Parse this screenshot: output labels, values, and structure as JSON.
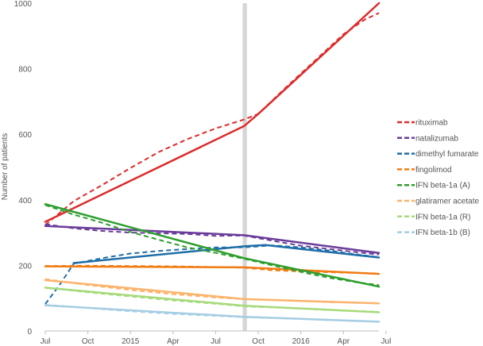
{
  "chart_data": {
    "type": "line",
    "title": "",
    "xlabel": "",
    "ylabel": "Number of patients",
    "x_ticks": [
      "Jul",
      "Oct",
      "2015",
      "Apr",
      "Jul",
      "Oct",
      "2016",
      "Apr",
      "Jul"
    ],
    "x_range": [
      0,
      23.5
    ],
    "ylim": [
      0,
      1000
    ],
    "y_ticks": [
      0,
      200,
      400,
      600,
      800,
      1000
    ],
    "grid": false,
    "legend_position": "right",
    "interruption_band_x": [
      13.9,
      14.2
    ],
    "note": "",
    "series": [
      {
        "name": "rituximab",
        "color": "#dd2c2c",
        "fitted": [
          [
            0,
            333
          ],
          [
            14.0,
            625
          ],
          [
            15.0,
            662
          ],
          [
            23.5,
            1000
          ]
        ],
        "observed": [
          [
            0,
            323
          ],
          [
            2,
            396
          ],
          [
            4,
            445
          ],
          [
            6,
            497
          ],
          [
            8,
            546
          ],
          [
            10,
            585
          ],
          [
            12,
            618
          ],
          [
            14,
            645
          ],
          [
            15,
            662
          ],
          [
            17,
            745
          ],
          [
            19,
            825
          ],
          [
            21,
            905
          ],
          [
            22.5,
            950
          ],
          [
            23.5,
            970
          ]
        ]
      },
      {
        "name": "natalizumab",
        "color": "#6a3d9a",
        "fitted": [
          [
            0,
            320
          ],
          [
            14.0,
            292
          ],
          [
            23.5,
            238
          ]
        ],
        "observed": [
          [
            0,
            326
          ],
          [
            2,
            313
          ],
          [
            4,
            305
          ],
          [
            6,
            300
          ],
          [
            8,
            298
          ],
          [
            10,
            296
          ],
          [
            12,
            290
          ],
          [
            14,
            291
          ],
          [
            16,
            275
          ],
          [
            18,
            260
          ],
          [
            20,
            250
          ],
          [
            22,
            240
          ],
          [
            23.5,
            233
          ]
        ]
      },
      {
        "name": "dimethyl fumarate",
        "color": "#1f6fa8",
        "fitted": [
          [
            2,
            207
          ],
          [
            14.0,
            258
          ],
          [
            15.5,
            262
          ],
          [
            23.5,
            224
          ]
        ],
        "observed": [
          [
            0,
            82
          ],
          [
            1,
            140
          ],
          [
            2,
            205
          ],
          [
            4,
            222
          ],
          [
            6,
            236
          ],
          [
            8,
            244
          ],
          [
            10,
            250
          ],
          [
            12,
            255
          ],
          [
            14,
            255
          ],
          [
            16,
            261
          ],
          [
            18,
            255
          ],
          [
            20,
            245
          ],
          [
            22,
            233
          ],
          [
            23.5,
            225
          ]
        ]
      },
      {
        "name": "fingolimod",
        "color": "#f07c13",
        "fitted": [
          [
            0,
            197
          ],
          [
            14.0,
            194
          ],
          [
            23.5,
            174
          ]
        ],
        "observed": [
          [
            0,
            198
          ],
          [
            3,
            199
          ],
          [
            6,
            198
          ],
          [
            9,
            197
          ],
          [
            12,
            195
          ],
          [
            14,
            193
          ],
          [
            16,
            185
          ],
          [
            19,
            180
          ],
          [
            21,
            178
          ],
          [
            23.5,
            175
          ]
        ]
      },
      {
        "name": "IFN beta-1a (A)",
        "color": "#2e9e2e",
        "fitted": [
          [
            0,
            387
          ],
          [
            14.0,
            222
          ],
          [
            23.5,
            135
          ]
        ],
        "observed": [
          [
            0,
            384
          ],
          [
            2,
            355
          ],
          [
            4,
            330
          ],
          [
            6,
            302
          ],
          [
            8,
            278
          ],
          [
            10,
            255
          ],
          [
            12,
            238
          ],
          [
            14,
            220
          ],
          [
            16,
            200
          ],
          [
            18,
            180
          ],
          [
            20,
            162
          ],
          [
            22,
            148
          ],
          [
            23.5,
            140
          ]
        ]
      },
      {
        "name": "glatiramer acetate",
        "color": "#fcb36b",
        "fitted": [
          [
            0,
            155
          ],
          [
            14.0,
            97
          ],
          [
            23.5,
            84
          ]
        ],
        "observed": [
          [
            0,
            158
          ],
          [
            3,
            140
          ],
          [
            6,
            125
          ],
          [
            9,
            112
          ],
          [
            12,
            102
          ],
          [
            14,
            97
          ],
          [
            17,
            93
          ],
          [
            20,
            88
          ],
          [
            23.5,
            84
          ]
        ]
      },
      {
        "name": "IFN beta-1a (R)",
        "color": "#a6da7a",
        "fitted": [
          [
            0,
            132
          ],
          [
            14.0,
            77
          ],
          [
            23.5,
            57
          ]
        ],
        "observed": [
          [
            0,
            132
          ],
          [
            3,
            118
          ],
          [
            6,
            105
          ],
          [
            9,
            93
          ],
          [
            12,
            83
          ],
          [
            14,
            75
          ],
          [
            17,
            70
          ],
          [
            20,
            64
          ],
          [
            23.5,
            58
          ]
        ]
      },
      {
        "name": "IFN beta-1b (B)",
        "color": "#a6cde3",
        "fitted": [
          [
            0,
            78
          ],
          [
            14.0,
            43
          ],
          [
            23.5,
            28
          ]
        ],
        "observed": [
          [
            0,
            80
          ],
          [
            3,
            70
          ],
          [
            6,
            60
          ],
          [
            9,
            52
          ],
          [
            12,
            46
          ],
          [
            14,
            42
          ],
          [
            17,
            38
          ],
          [
            20,
            33
          ],
          [
            23.5,
            28
          ]
        ]
      }
    ]
  }
}
